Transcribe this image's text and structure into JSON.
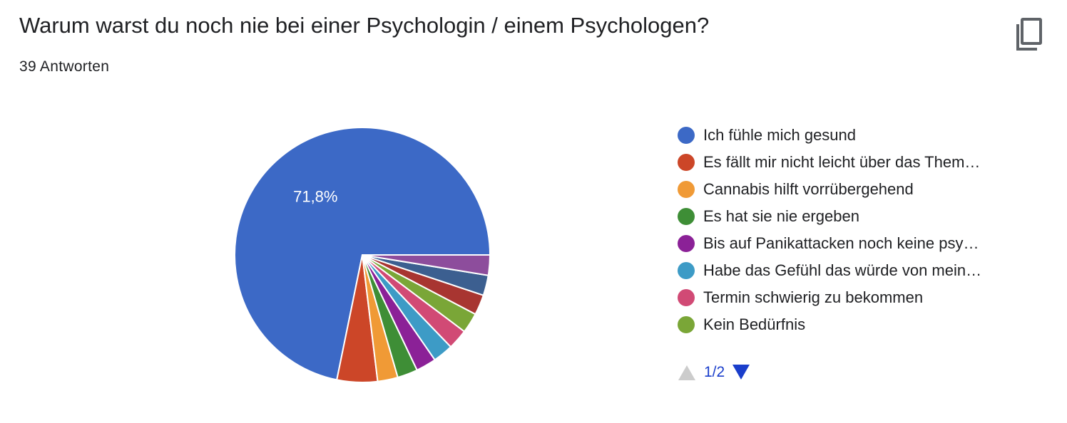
{
  "header": {
    "title": "Warum warst du noch nie bei einer Psychologin / einem Psychologen?",
    "response_count": "39 Antworten",
    "copy_icon": "copy-icon"
  },
  "chart_data": {
    "type": "pie",
    "title": "Warum warst du noch nie bei einer Psychologin / einem Psychologen?",
    "total_responses": 39,
    "slices": [
      {
        "label": "Ich fühle mich gesund",
        "count": 28,
        "color": "#3c69c6"
      },
      {
        "label": "Es fällt mir nicht leicht über das Them…",
        "count": 2,
        "color": "#cc4628"
      },
      {
        "label": "Cannabis hilft vorrübergehend",
        "count": 1,
        "color": "#f09a36"
      },
      {
        "label": "Es hat sie nie ergeben",
        "count": 1,
        "color": "#3e8e36"
      },
      {
        "label": "Bis auf Panikattacken noch keine psy…",
        "count": 1,
        "color": "#8b2197"
      },
      {
        "label": "Habe das Gefühl das würde von mein…",
        "count": 1,
        "color": "#3d9bc6"
      },
      {
        "label": "Termin schwierig zu bekommen",
        "count": 1,
        "color": "#d14a75"
      },
      {
        "label": "Kein Bedürfnis",
        "count": 1,
        "color": "#7aa637"
      },
      {
        "label": "",
        "count": 1,
        "color": "#a83531"
      },
      {
        "label": "",
        "count": 1,
        "color": "#3c5f90"
      },
      {
        "label": "",
        "count": 1,
        "color": "#8d4d9c"
      }
    ],
    "slice_labels": [
      {
        "slice": 0,
        "text": "71,8%"
      }
    ],
    "legend_position": "right",
    "start_angle": "3 o'clock, counter-clockwise"
  },
  "legend": {
    "items": [
      {
        "label": "Ich fühle mich gesund",
        "color": "#3c69c6"
      },
      {
        "label": "Es fällt mir nicht leicht über das Them…",
        "color": "#cc4628"
      },
      {
        "label": "Cannabis hilft vorrübergehend",
        "color": "#f09a36"
      },
      {
        "label": "Es hat sie nie ergeben",
        "color": "#3e8e36"
      },
      {
        "label": "Bis auf Panikattacken noch keine psy…",
        "color": "#8b2197"
      },
      {
        "label": "Habe das Gefühl das würde von mein…",
        "color": "#3d9bc6"
      },
      {
        "label": "Termin schwierig zu bekommen",
        "color": "#d14a75"
      },
      {
        "label": "Kein Bedürfnis",
        "color": "#7aa637"
      }
    ]
  },
  "pager": {
    "text": "1/2",
    "up_icon": "triangle-up-icon",
    "down_icon": "triangle-down-icon",
    "up_color": "#cccccc",
    "down_color": "#1a3ecb"
  }
}
